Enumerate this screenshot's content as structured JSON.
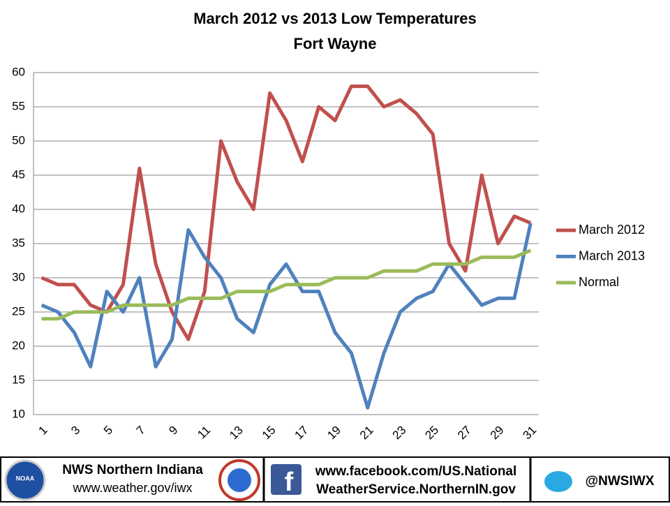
{
  "chart_data": {
    "type": "line",
    "title": "March 2012 vs 2013 Low Temperatures",
    "subtitle": "Fort Wayne",
    "categories": [
      "1",
      null,
      "3",
      null,
      "5",
      null,
      "7",
      null,
      "9",
      null,
      "11",
      null,
      "13",
      null,
      "15",
      null,
      "17",
      null,
      "19",
      null,
      "21",
      null,
      "23",
      null,
      "25",
      null,
      "27",
      null,
      "29",
      null,
      "31"
    ],
    "series": [
      {
        "name": "March 2012",
        "color": "#c0504d",
        "values": [
          30,
          29,
          29,
          26,
          25,
          29,
          46,
          32,
          25,
          21,
          28,
          50,
          44,
          40,
          57,
          53,
          47,
          55,
          53,
          58,
          58,
          55,
          56,
          54,
          51,
          35,
          31,
          45,
          35,
          39,
          38
        ]
      },
      {
        "name": "March 2013",
        "color": "#4f81bd",
        "values": [
          26,
          25,
          22,
          17,
          28,
          25,
          30,
          17,
          21,
          37,
          33,
          30,
          24,
          22,
          29,
          32,
          28,
          28,
          22,
          19,
          11,
          19,
          25,
          27,
          28,
          32,
          29,
          26,
          27,
          27,
          38
        ]
      },
      {
        "name": "Normal",
        "color": "#9bbb59",
        "values": [
          24,
          24,
          25,
          25,
          25,
          26,
          26,
          26,
          26,
          27,
          27,
          27,
          28,
          28,
          28,
          29,
          29,
          29,
          30,
          30,
          30,
          31,
          31,
          31,
          32,
          32,
          32,
          33,
          33,
          33,
          34
        ]
      }
    ],
    "ylim": [
      10,
      60
    ],
    "yticks": [
      10,
      15,
      20,
      25,
      30,
      35,
      40,
      45,
      50,
      55,
      60
    ],
    "grid": true,
    "legend": "right"
  },
  "footer": {
    "org": "NWS Northern Indiana",
    "url": "www.weather.gov/iwx",
    "noaa": "NOAA",
    "facebook_1": "www.facebook.com/US.National",
    "facebook_2": "WeatherService.NorthernIN.gov",
    "twitter": "@NWSIWX"
  }
}
